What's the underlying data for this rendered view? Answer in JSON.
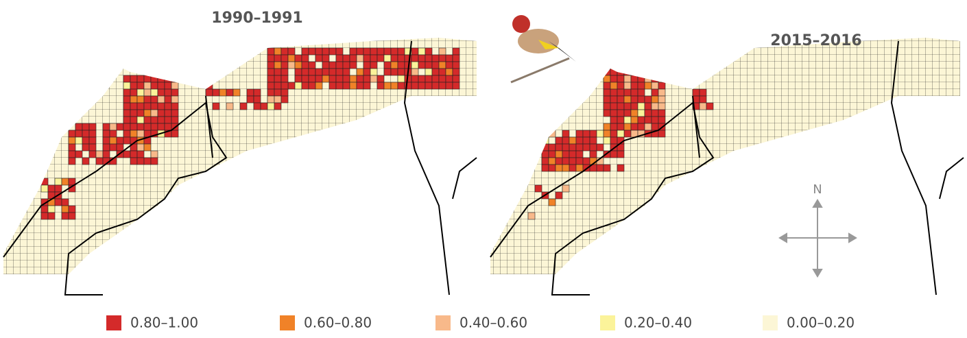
{
  "maps": [
    {
      "title": "1990–1991"
    },
    {
      "title": "2015–2016"
    }
  ],
  "compass": "N",
  "legend": [
    {
      "label": "0.80–1.00",
      "color": "#d42a2a"
    },
    {
      "label": "0.60–0.80",
      "color": "#f08228"
    },
    {
      "label": "0.40–0.60",
      "color": "#f8b98a"
    },
    {
      "label": "0.20–0.40",
      "color": "#fbf39a"
    },
    {
      "label": "0.00–0.20",
      "color": "#fcf6d6"
    }
  ]
}
